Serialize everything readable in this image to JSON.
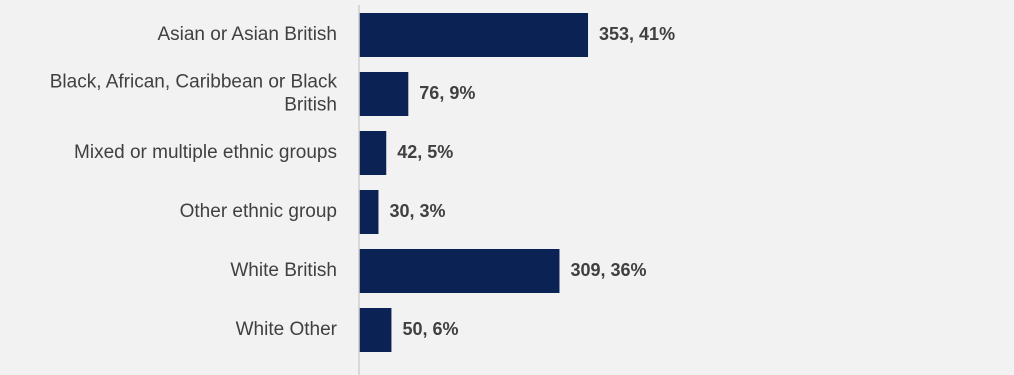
{
  "chart_data": {
    "type": "bar",
    "orientation": "horizontal",
    "title": "",
    "xlabel": "",
    "ylabel": "",
    "categories": [
      [
        "Asian or Asian British"
      ],
      [
        "Black, African, Caribbean or Black",
        "British"
      ],
      [
        "Mixed or multiple ethnic groups"
      ],
      [
        "Other ethnic group"
      ],
      [
        "White British"
      ],
      [
        "White Other"
      ]
    ],
    "values": [
      353,
      76,
      42,
      30,
      309,
      50
    ],
    "data_labels": [
      "353, 41%",
      "76, 9%",
      "42, 5%",
      "30, 3%",
      "309, 36%",
      "50, 6%"
    ],
    "bar_color": "#0b2255",
    "axis_line_color": "#d0d0d0",
    "background": "#f2f2f2",
    "grid": false,
    "legend": "none"
  }
}
